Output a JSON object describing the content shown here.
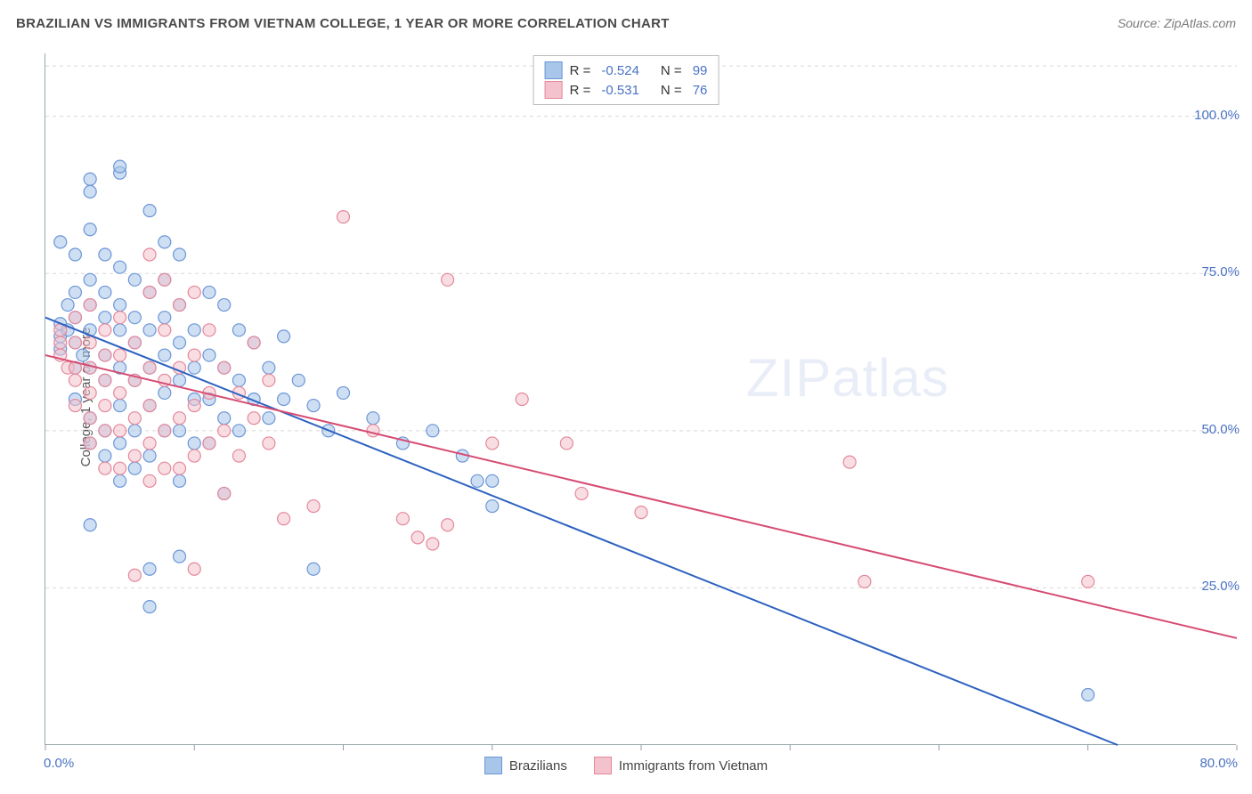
{
  "header": {
    "title": "BRAZILIAN VS IMMIGRANTS FROM VIETNAM COLLEGE, 1 YEAR OR MORE CORRELATION CHART",
    "source": "Source: ZipAtlas.com"
  },
  "ylabel": "College, 1 year or more",
  "watermark": "ZIPatlas",
  "chart": {
    "type": "scatter",
    "xlim": [
      0,
      80
    ],
    "ylim": [
      0,
      110
    ],
    "xtick_positions": [
      0,
      10,
      20,
      30,
      40,
      50,
      60,
      70,
      80
    ],
    "xtick_labels": [
      "0.0%",
      "",
      "",
      "",
      "",
      "",
      "",
      "",
      "80.0%"
    ],
    "ytick_positions": [
      25,
      50,
      75,
      100
    ],
    "ytick_labels": [
      "25.0%",
      "50.0%",
      "75.0%",
      "100.0%"
    ],
    "grid_color": "#d8d8d8",
    "grid_dash": "4,4",
    "background_color": "#ffffff",
    "axis_color": "#9999aa",
    "tick_label_color": "#4a72c4",
    "marker_radius": 7,
    "marker_stroke_width": 1.2,
    "line_width": 2,
    "series": [
      {
        "name": "Brazilians",
        "color_fill": "#a8c5ea",
        "color_stroke": "#6b96d6",
        "fill_opacity": 0.55,
        "R": "-0.524",
        "N": "99",
        "trend": {
          "x1": 0,
          "y1": 68,
          "x2": 72,
          "y2": 0,
          "color": "#2d62c0"
        },
        "points": [
          [
            1,
            80
          ],
          [
            1,
            67
          ],
          [
            1,
            65
          ],
          [
            1,
            63
          ],
          [
            1.5,
            70
          ],
          [
            1.5,
            66
          ],
          [
            2,
            78
          ],
          [
            2,
            72
          ],
          [
            2,
            68
          ],
          [
            2,
            64
          ],
          [
            2,
            60
          ],
          [
            2,
            55
          ],
          [
            2.5,
            62
          ],
          [
            3,
            90
          ],
          [
            3,
            88
          ],
          [
            3,
            82
          ],
          [
            3,
            74
          ],
          [
            3,
            70
          ],
          [
            3,
            66
          ],
          [
            3,
            60
          ],
          [
            3,
            52
          ],
          [
            3,
            48
          ],
          [
            3,
            35
          ],
          [
            4,
            78
          ],
          [
            4,
            72
          ],
          [
            4,
            68
          ],
          [
            4,
            62
          ],
          [
            4,
            58
          ],
          [
            4,
            50
          ],
          [
            4,
            46
          ],
          [
            5,
            91
          ],
          [
            5,
            92
          ],
          [
            5,
            76
          ],
          [
            5,
            70
          ],
          [
            5,
            66
          ],
          [
            5,
            60
          ],
          [
            5,
            54
          ],
          [
            5,
            48
          ],
          [
            5,
            42
          ],
          [
            6,
            74
          ],
          [
            6,
            68
          ],
          [
            6,
            64
          ],
          [
            6,
            58
          ],
          [
            6,
            50
          ],
          [
            6,
            44
          ],
          [
            7,
            85
          ],
          [
            7,
            72
          ],
          [
            7,
            66
          ],
          [
            7,
            60
          ],
          [
            7,
            54
          ],
          [
            7,
            46
          ],
          [
            7,
            28
          ],
          [
            7,
            22
          ],
          [
            8,
            80
          ],
          [
            8,
            74
          ],
          [
            8,
            68
          ],
          [
            8,
            62
          ],
          [
            8,
            56
          ],
          [
            8,
            50
          ],
          [
            9,
            78
          ],
          [
            9,
            70
          ],
          [
            9,
            64
          ],
          [
            9,
            58
          ],
          [
            9,
            50
          ],
          [
            9,
            42
          ],
          [
            9,
            30
          ],
          [
            10,
            66
          ],
          [
            10,
            60
          ],
          [
            10,
            55
          ],
          [
            10,
            48
          ],
          [
            11,
            72
          ],
          [
            11,
            62
          ],
          [
            11,
            55
          ],
          [
            11,
            48
          ],
          [
            12,
            70
          ],
          [
            12,
            60
          ],
          [
            12,
            52
          ],
          [
            12,
            40
          ],
          [
            13,
            66
          ],
          [
            13,
            58
          ],
          [
            13,
            50
          ],
          [
            14,
            64
          ],
          [
            14,
            55
          ],
          [
            15,
            60
          ],
          [
            15,
            52
          ],
          [
            16,
            65
          ],
          [
            16,
            55
          ],
          [
            17,
            58
          ],
          [
            18,
            54
          ],
          [
            18,
            28
          ],
          [
            19,
            50
          ],
          [
            20,
            56
          ],
          [
            22,
            52
          ],
          [
            24,
            48
          ],
          [
            26,
            50
          ],
          [
            28,
            46
          ],
          [
            29,
            42
          ],
          [
            30,
            38
          ],
          [
            30,
            42
          ],
          [
            70,
            8
          ]
        ]
      },
      {
        "name": "Immigrants from Vietnam",
        "color_fill": "#f3c2cc",
        "color_stroke": "#e5879b",
        "fill_opacity": 0.55,
        "R": "-0.531",
        "N": "76",
        "trend": {
          "x1": 0,
          "y1": 62,
          "x2": 80,
          "y2": 17,
          "color": "#d64b72"
        },
        "points": [
          [
            1,
            66
          ],
          [
            1,
            64
          ],
          [
            1,
            62
          ],
          [
            1.5,
            60
          ],
          [
            2,
            68
          ],
          [
            2,
            64
          ],
          [
            2,
            60
          ],
          [
            2,
            58
          ],
          [
            2,
            54
          ],
          [
            3,
            70
          ],
          [
            3,
            64
          ],
          [
            3,
            60
          ],
          [
            3,
            56
          ],
          [
            3,
            52
          ],
          [
            3,
            48
          ],
          [
            4,
            66
          ],
          [
            4,
            62
          ],
          [
            4,
            58
          ],
          [
            4,
            54
          ],
          [
            4,
            50
          ],
          [
            4,
            44
          ],
          [
            5,
            68
          ],
          [
            5,
            62
          ],
          [
            5,
            56
          ],
          [
            5,
            50
          ],
          [
            5,
            44
          ],
          [
            6,
            64
          ],
          [
            6,
            58
          ],
          [
            6,
            52
          ],
          [
            6,
            46
          ],
          [
            6,
            27
          ],
          [
            7,
            72
          ],
          [
            7,
            78
          ],
          [
            7,
            60
          ],
          [
            7,
            54
          ],
          [
            7,
            48
          ],
          [
            7,
            42
          ],
          [
            8,
            74
          ],
          [
            8,
            66
          ],
          [
            8,
            58
          ],
          [
            8,
            50
          ],
          [
            8,
            44
          ],
          [
            9,
            70
          ],
          [
            9,
            60
          ],
          [
            9,
            52
          ],
          [
            9,
            44
          ],
          [
            10,
            72
          ],
          [
            10,
            62
          ],
          [
            10,
            54
          ],
          [
            10,
            46
          ],
          [
            10,
            28
          ],
          [
            11,
            66
          ],
          [
            11,
            56
          ],
          [
            11,
            48
          ],
          [
            12,
            60
          ],
          [
            12,
            50
          ],
          [
            12,
            40
          ],
          [
            13,
            56
          ],
          [
            13,
            46
          ],
          [
            14,
            64
          ],
          [
            14,
            52
          ],
          [
            15,
            58
          ],
          [
            15,
            48
          ],
          [
            16,
            36
          ],
          [
            18,
            38
          ],
          [
            20,
            84
          ],
          [
            22,
            50
          ],
          [
            24,
            36
          ],
          [
            25,
            33
          ],
          [
            26,
            32
          ],
          [
            27,
            74
          ],
          [
            27,
            35
          ],
          [
            30,
            48
          ],
          [
            32,
            55
          ],
          [
            35,
            48
          ],
          [
            36,
            40
          ],
          [
            40,
            37
          ],
          [
            54,
            45
          ],
          [
            55,
            26
          ],
          [
            70,
            26
          ]
        ]
      }
    ]
  },
  "bottom_legend": [
    {
      "label": "Brazilians",
      "fill": "#a8c5ea",
      "stroke": "#6b96d6"
    },
    {
      "label": "Immigrants from Vietnam",
      "fill": "#f3c2cc",
      "stroke": "#e5879b"
    }
  ]
}
